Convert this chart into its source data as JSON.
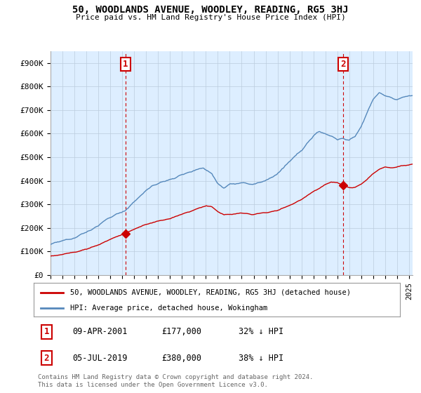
{
  "title": "50, WOODLANDS AVENUE, WOODLEY, READING, RG5 3HJ",
  "subtitle": "Price paid vs. HM Land Registry's House Price Index (HPI)",
  "ylabel_ticks": [
    "£0",
    "£100K",
    "£200K",
    "£300K",
    "£400K",
    "£500K",
    "£600K",
    "£700K",
    "£800K",
    "£900K"
  ],
  "ytick_values": [
    0,
    100000,
    200000,
    300000,
    400000,
    500000,
    600000,
    700000,
    800000,
    900000
  ],
  "ylim": [
    0,
    950000
  ],
  "xlim_start": 1995.0,
  "xlim_end": 2025.3,
  "sale1_x": 2001.27,
  "sale1_y": 177000,
  "sale1_label": "1",
  "sale1_date": "09-APR-2001",
  "sale1_price": "£177,000",
  "sale1_hpi": "32% ↓ HPI",
  "sale2_x": 2019.5,
  "sale2_y": 380000,
  "sale2_label": "2",
  "sale2_date": "05-JUL-2019",
  "sale2_price": "£380,000",
  "sale2_hpi": "38% ↓ HPI",
  "red_color": "#cc0000",
  "blue_color": "#5588bb",
  "bg_fill_color": "#ddeeff",
  "legend_label_red": "50, WOODLANDS AVENUE, WOODLEY, READING, RG5 3HJ (detached house)",
  "legend_label_blue": "HPI: Average price, detached house, Wokingham",
  "footer": "Contains HM Land Registry data © Crown copyright and database right 2024.\nThis data is licensed under the Open Government Licence v3.0.",
  "background_color": "#ffffff",
  "grid_color": "#bbccdd"
}
